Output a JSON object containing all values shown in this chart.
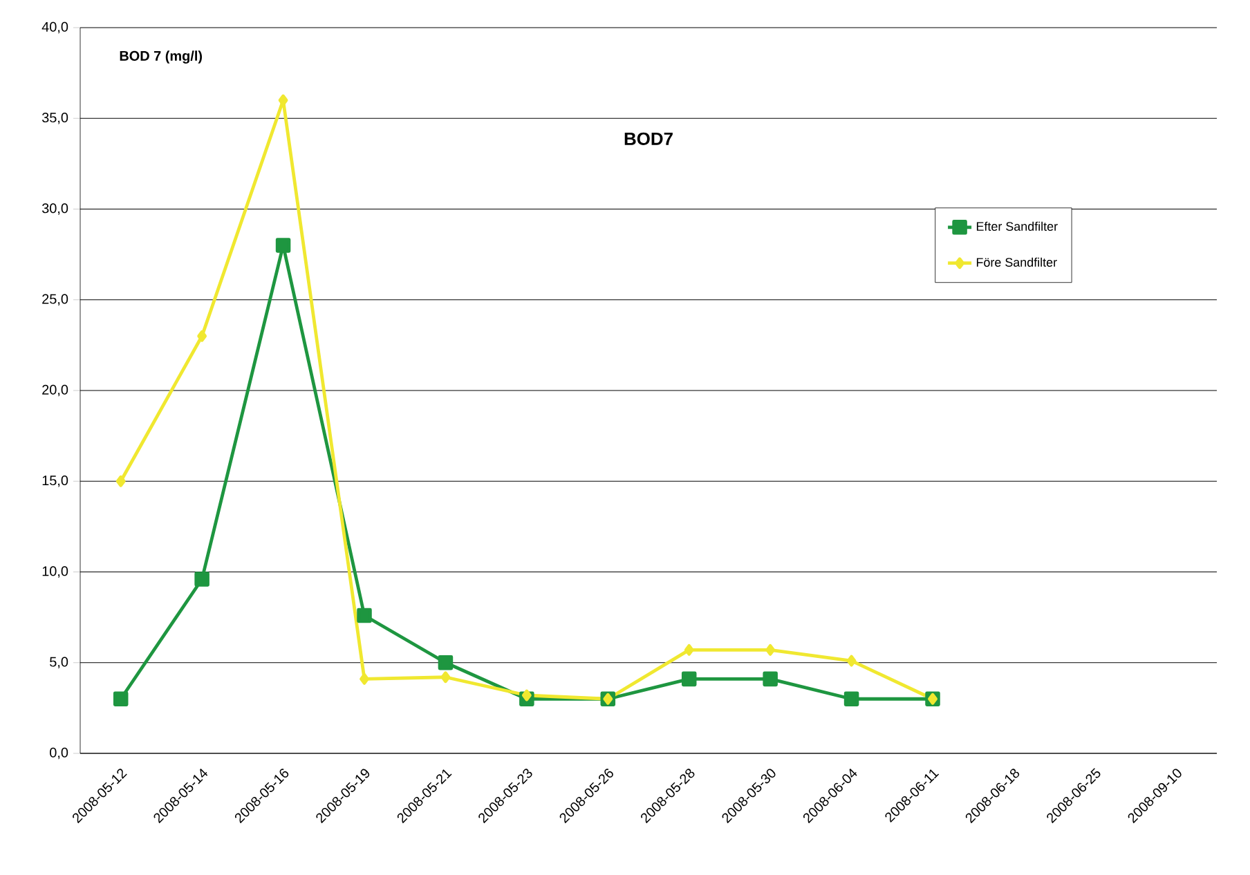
{
  "chart_data": {
    "type": "line",
    "title": "BOD7",
    "ylabel": "BOD 7  (mg/l)",
    "categories": [
      "2008-05-12",
      "2008-05-14",
      "2008-05-16",
      "2008-05-19",
      "2008-05-21",
      "2008-05-23",
      "2008-05-26",
      "2008-05-28",
      "2008-05-30",
      "2008-06-04",
      "2008-06-11",
      "2008-06-18",
      "2008-06-25",
      "2008-09-10"
    ],
    "series": [
      {
        "name": "Efter Sandfilter",
        "color": "#1e9640",
        "marker": "square",
        "values": [
          3,
          9.6,
          28,
          7.6,
          5,
          3,
          3,
          4.1,
          4.1,
          3,
          3,
          null,
          null,
          null
        ]
      },
      {
        "name": "Före Sandfilter",
        "color": "#f0e830",
        "marker": "diamond",
        "values": [
          15,
          23,
          36,
          4.1,
          4.2,
          3.2,
          3,
          5.7,
          5.7,
          5.1,
          3,
          null,
          null,
          null
        ]
      }
    ],
    "ylim": [
      0,
      40
    ],
    "yticks": [
      {
        "value": 0,
        "label": "0,0"
      },
      {
        "value": 5,
        "label": "5,0"
      },
      {
        "value": 10,
        "label": "10,0"
      },
      {
        "value": 15,
        "label": "15,0"
      },
      {
        "value": 20,
        "label": "20,0"
      },
      {
        "value": 25,
        "label": "25,0"
      },
      {
        "value": 30,
        "label": "30,0"
      },
      {
        "value": 35,
        "label": "35,0"
      },
      {
        "value": 40,
        "label": "40,0"
      }
    ],
    "grid": "y",
    "legend": "right",
    "line_style": "solid"
  }
}
